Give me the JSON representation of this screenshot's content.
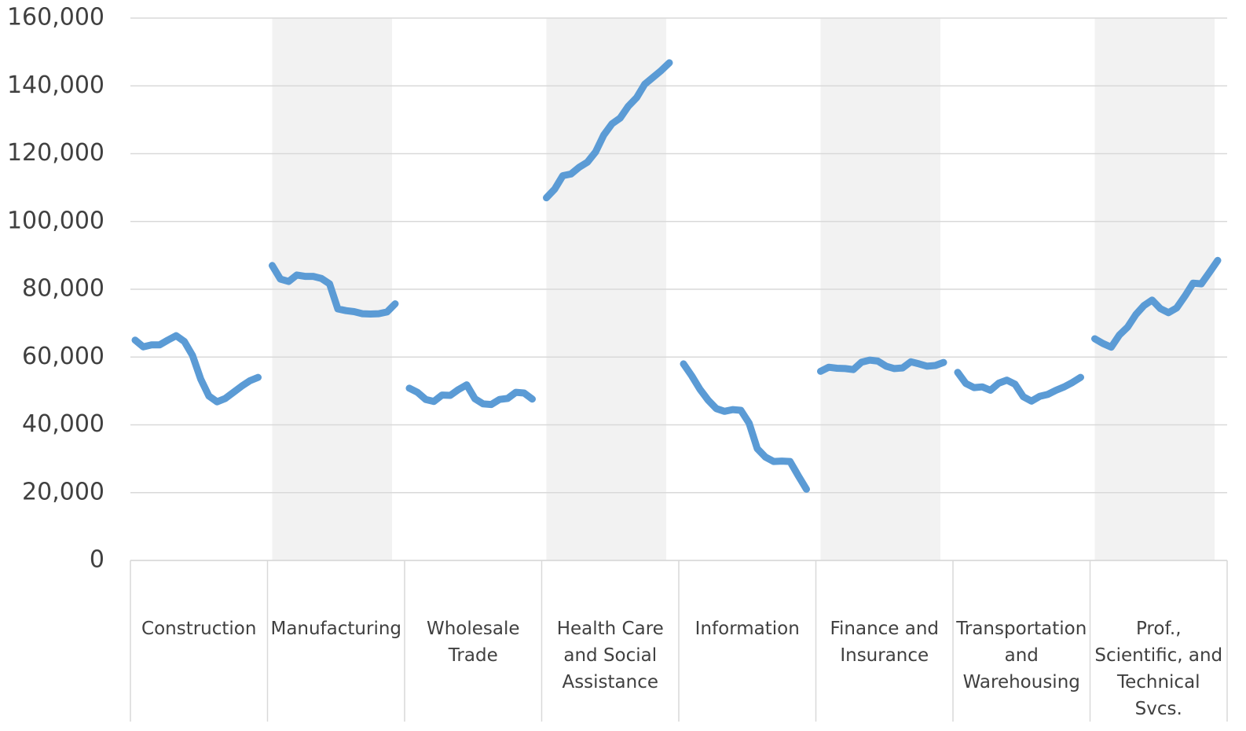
{
  "chart_data": {
    "type": "line",
    "categories": [
      "Construction",
      "Manufacturing",
      "Wholesale Trade",
      "Health Care and Social Assistance",
      "Information",
      "Finance and Insurance",
      "Transportation and Warehousing",
      "Prof., Scientific, and Technical Svcs."
    ],
    "values": [
      [
        65000,
        63000,
        63600,
        63600,
        65000,
        66300,
        64600,
        60500,
        53500,
        48500,
        46800,
        47800,
        49600,
        51400,
        53000,
        54000
      ],
      [
        87000,
        83000,
        82300,
        84200,
        83800,
        83800,
        83200,
        81600,
        74200,
        73700,
        73400,
        72800,
        72700,
        72800,
        73300,
        75700
      ],
      [
        50800,
        49600,
        47500,
        46900,
        48800,
        48700,
        50400,
        51800,
        47700,
        46200,
        46000,
        47500,
        47800,
        49600,
        49400,
        47600
      ],
      [
        107000,
        109500,
        113500,
        114000,
        116000,
        117500,
        120500,
        125500,
        128800,
        130500,
        134000,
        136500,
        140500,
        142500,
        144500,
        146800
      ],
      [
        58000,
        54500,
        50500,
        47300,
        44800,
        44000,
        44500,
        44300,
        40500,
        33000,
        30500,
        29200,
        29300,
        29200,
        25000,
        21000
      ],
      [
        55800,
        57000,
        56700,
        56600,
        56300,
        58500,
        59100,
        58800,
        57300,
        56600,
        56800,
        58600,
        58000,
        57300,
        57500,
        58400
      ],
      [
        55500,
        52200,
        51000,
        51200,
        50200,
        52300,
        53200,
        52000,
        48300,
        47000,
        48400,
        49000,
        50200,
        51200,
        52500,
        54000
      ],
      [
        65400,
        64000,
        62900,
        66500,
        68800,
        72500,
        75200,
        76800,
        74300,
        73100,
        74500,
        78000,
        81800,
        81600,
        85000,
        88500
      ]
    ],
    "color": "#5b9bd5",
    "ylim": [
      0,
      160000
    ],
    "yticks": [
      0,
      {
        "value": 20000,
        "label": "20,000"
      },
      {
        "value": 40000,
        "label": "40,000"
      },
      {
        "value": 60000,
        "label": "60,000"
      },
      {
        "value": 80000,
        "label": "80,000"
      },
      {
        "value": 100000,
        "label": "100,000"
      },
      {
        "value": 120000,
        "label": "120,000"
      },
      {
        "value": 140000,
        "label": "140,000"
      },
      {
        "value": 160000,
        "label": "160,000"
      }
    ],
    "grid": true
  }
}
